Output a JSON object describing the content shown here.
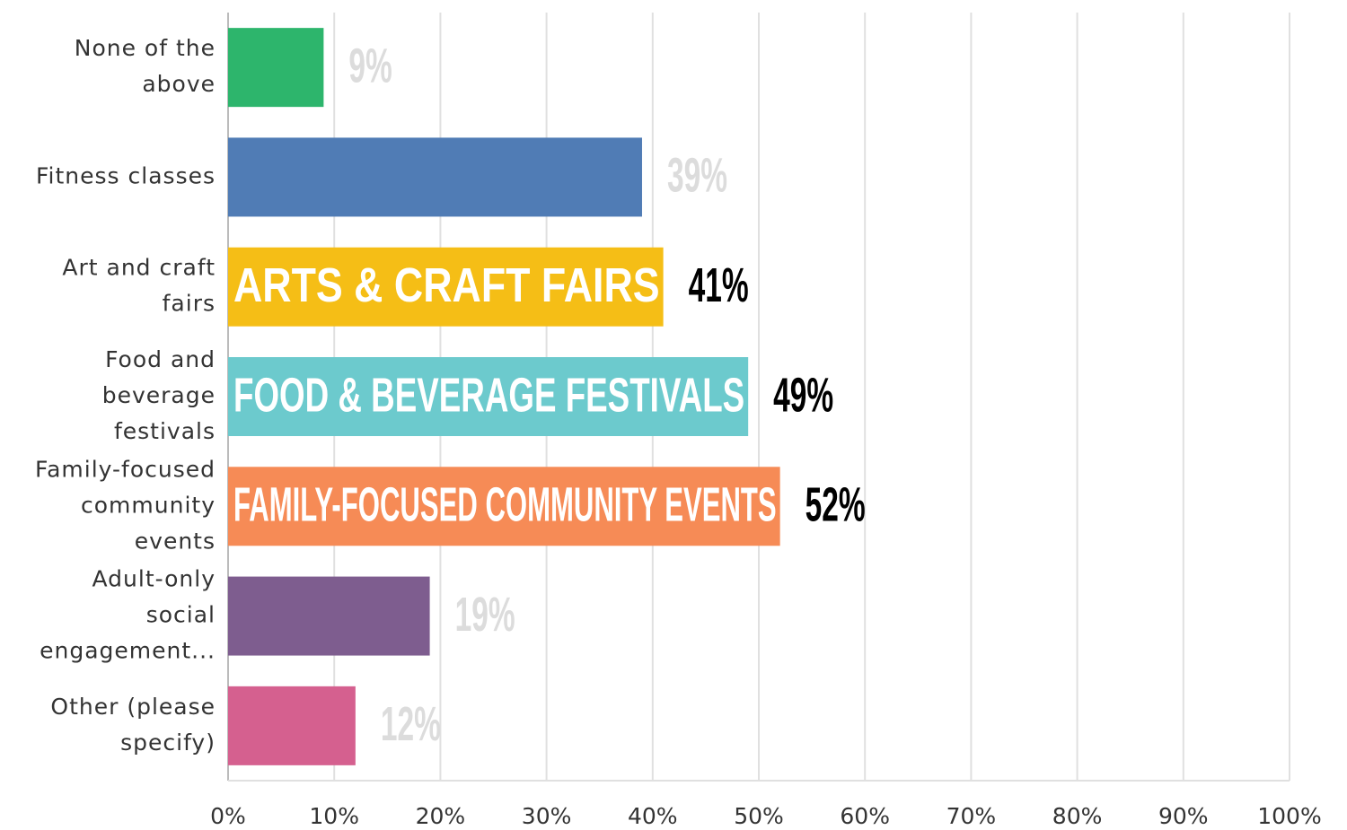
{
  "chart_data": {
    "type": "bar",
    "orientation": "horizontal",
    "categories": [
      [
        "None of the",
        "above"
      ],
      [
        "Fitness classes"
      ],
      [
        "Art and craft",
        "fairs"
      ],
      [
        "Food and",
        "beverage",
        "festivals"
      ],
      [
        "Family-focused",
        "community",
        "events"
      ],
      [
        "Adult-only",
        "social",
        "engagement..."
      ],
      [
        "Other (please",
        "specify)"
      ]
    ],
    "values": [
      9,
      39,
      41,
      49,
      52,
      19,
      12
    ],
    "value_labels": [
      "9%",
      "39%",
      "41%",
      "49%",
      "52%",
      "19%",
      "12%"
    ],
    "bar_labels": [
      null,
      null,
      "ARTS & CRAFT FAIRS",
      "FOOD & BEVERAGE FESTIVALS",
      "FAMILY-FOCUSED COMMUNITY EVENTS",
      null,
      null
    ],
    "colors": [
      "#2db56c",
      "#507cb5",
      "#f5be16",
      "#6ccacd",
      "#f68b56",
      "#7e5d8f",
      "#d5608f"
    ],
    "value_label_colors": [
      "#dcdcdc",
      "#dcdcdc",
      "#000000",
      "#000000",
      "#000000",
      "#dcdcdc",
      "#dcdcdc"
    ],
    "xlim": [
      0,
      100
    ],
    "xticks": [
      {
        "value": 0,
        "label": "0%"
      },
      {
        "value": 10,
        "label": "10%"
      },
      {
        "value": 20,
        "label": "20%"
      },
      {
        "value": 30,
        "label": "30%"
      },
      {
        "value": 40,
        "label": "40%"
      },
      {
        "value": 50,
        "label": "50%"
      },
      {
        "value": 60,
        "label": "60%"
      },
      {
        "value": 70,
        "label": "70%"
      },
      {
        "value": 80,
        "label": "80%"
      },
      {
        "value": 90,
        "label": "90%"
      },
      {
        "value": 100,
        "label": "100%"
      }
    ],
    "grid": true
  }
}
